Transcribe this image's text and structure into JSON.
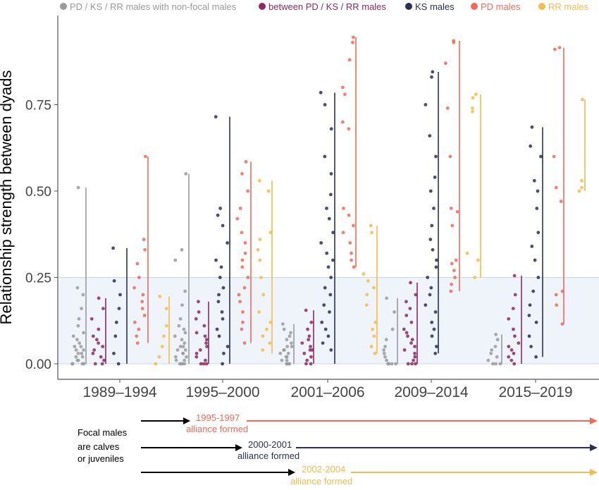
{
  "chart_data": {
    "type": "scatter",
    "title": "",
    "ylabel": "Relationship strength between dyads",
    "xlabel": "",
    "ylim": [
      0,
      0.95
    ],
    "yticks": [
      0,
      0.25,
      0.5,
      0.75
    ],
    "ytick_labels": [
      "0.00",
      "0.25",
      "0.50",
      "0.75"
    ],
    "categories": [
      "1989–1994",
      "1995–2000",
      "2001–2006",
      "2009–2014",
      "2015–2019"
    ],
    "legend": {
      "placement": "top"
    },
    "shaded_band": {
      "from": 0,
      "to": 0.25,
      "color": "#eef4f9"
    },
    "grid": false,
    "series": [
      {
        "name": "PD / KS / RR males with non-focal males",
        "color": "#9a9a9a",
        "ranges": [
          [
            0,
            0.51
          ],
          [
            0,
            0.55
          ],
          [
            0,
            0.115
          ],
          [
            0,
            0.19
          ],
          [
            0,
            0.085
          ]
        ],
        "samples": [
          [
            0.51,
            0.22,
            0.2,
            0.16,
            0.13,
            0.11,
            0.09,
            0.08,
            0.07,
            0.06,
            0.05,
            0.05,
            0.04,
            0.04,
            0.03,
            0.03,
            0.02,
            0.02,
            0.01,
            0.01,
            0,
            0,
            0,
            0
          ],
          [
            0.55,
            0.33,
            0.3,
            0.21,
            0.17,
            0.13,
            0.11,
            0.1,
            0.09,
            0.08,
            0.07,
            0.06,
            0.05,
            0.05,
            0.04,
            0.04,
            0.03,
            0.03,
            0.02,
            0.02,
            0.01,
            0.01,
            0,
            0,
            0,
            0
          ],
          [
            0.115,
            0.1,
            0.09,
            0.08,
            0.07,
            0.06,
            0.05,
            0.05,
            0.04,
            0.04,
            0.03,
            0.03,
            0.02,
            0.02,
            0.01,
            0.01,
            0,
            0,
            0,
            0
          ],
          [
            0.19,
            0.15,
            0.1,
            0.07,
            0.05,
            0.04,
            0.03,
            0.02,
            0.01,
            0,
            0,
            0,
            0
          ],
          [
            0.085,
            0.07,
            0.05,
            0.04,
            0.03,
            0.02,
            0.01,
            0,
            0,
            0
          ]
        ]
      },
      {
        "name": "between PD / KS / RR males",
        "color": "#8b2a63",
        "ranges": [
          [
            0,
            0.19
          ],
          [
            0,
            0.18
          ],
          [
            0,
            0.155
          ],
          [
            0,
            0.235
          ],
          [
            0,
            0.255
          ]
        ],
        "samples": [
          [
            0.19,
            0.16,
            0.13,
            0.1,
            0.08,
            0.07,
            0.06,
            0.05,
            0.04,
            0.03,
            0.02,
            0.01,
            0,
            0
          ],
          [
            0.18,
            0.15,
            0.13,
            0.11,
            0.09,
            0.08,
            0.07,
            0.06,
            0.05,
            0.04,
            0.03,
            0.02,
            0.01,
            0,
            0,
            0
          ],
          [
            0.155,
            0.12,
            0.1,
            0.08,
            0.07,
            0.06,
            0.05,
            0.04,
            0.04,
            0.03,
            0.02,
            0.01,
            0,
            0
          ],
          [
            0.235,
            0.2,
            0.18,
            0.16,
            0.14,
            0.12,
            0.1,
            0.09,
            0.08,
            0.07,
            0.06,
            0.05,
            0.04,
            0.03,
            0.02,
            0.01,
            0,
            0,
            0
          ],
          [
            0.255,
            0.2,
            0.16,
            0.13,
            0.1,
            0.08,
            0.06,
            0.05,
            0.04,
            0.03,
            0.02,
            0.01,
            0
          ]
        ]
      },
      {
        "name": "KS males",
        "color": "#2b2f55",
        "ranges": [
          [
            0,
            0.335
          ],
          [
            0,
            0.715
          ],
          [
            0,
            0.785
          ],
          [
            0.03,
            0.845
          ],
          [
            0.02,
            0.685
          ]
        ],
        "samples": [
          [
            0.335,
            0.24,
            0.2,
            0.16,
            0.12,
            0.08,
            0.03,
            0
          ],
          [
            0.715,
            0.45,
            0.43,
            0.4,
            0.35,
            0.3,
            0.28,
            0.25,
            0.22,
            0.2,
            0.18,
            0.15,
            0.13,
            0.1,
            0.08,
            0.05,
            0.03,
            0
          ],
          [
            0.785,
            0.75,
            0.68,
            0.6,
            0.55,
            0.49,
            0.45,
            0.42,
            0.38,
            0.35,
            0.32,
            0.3,
            0.28,
            0.25,
            0.22,
            0.2,
            0.17,
            0.15,
            0.12,
            0.1,
            0.08,
            0.06,
            0.04
          ],
          [
            0.845,
            0.83,
            0.75,
            0.66,
            0.6,
            0.54,
            0.5,
            0.45,
            0.4,
            0.36,
            0.33,
            0.3,
            0.28,
            0.25,
            0.22,
            0.2,
            0.17,
            0.15,
            0.12,
            0.1,
            0.08,
            0.05,
            0.03
          ],
          [
            0.685,
            0.63,
            0.6,
            0.53,
            0.5,
            0.45,
            0.38,
            0.34,
            0.3,
            0.25,
            0.21,
            0.17,
            0.14,
            0.12,
            0.08,
            0.05,
            0.02
          ]
        ]
      },
      {
        "name": "PD males",
        "color": "#f06a5a",
        "ranges": [
          [
            0.06,
            0.6
          ],
          [
            0.06,
            0.585
          ],
          [
            0.28,
            0.945
          ],
          [
            0.21,
            0.935
          ],
          [
            0.115,
            0.915
          ]
        ],
        "samples": [
          [
            0.6,
            0.36,
            0.33,
            0.29,
            0.25,
            0.22,
            0.2,
            0.18,
            0.16,
            0.14,
            0.12,
            0.1,
            0.08,
            0.06
          ],
          [
            0.585,
            0.55,
            0.5,
            0.45,
            0.42,
            0.38,
            0.35,
            0.32,
            0.3,
            0.28,
            0.25,
            0.22,
            0.2,
            0.18,
            0.15,
            0.12,
            0.1,
            0.06
          ],
          [
            0.945,
            0.93,
            0.88,
            0.8,
            0.78,
            0.7,
            0.68,
            0.45,
            0.43,
            0.4,
            0.38,
            0.35,
            0.32,
            0.3,
            0.28
          ],
          [
            0.935,
            0.93,
            0.87,
            0.74,
            0.6,
            0.45,
            0.44,
            0.4,
            0.3,
            0.29,
            0.27,
            0.25,
            0.23,
            0.21
          ],
          [
            0.915,
            0.91,
            0.6,
            0.51,
            0.47,
            0.21,
            0.2,
            0.17,
            0.115
          ]
        ]
      },
      {
        "name": "RR males",
        "color": "#f6bb4a",
        "ranges": [
          [
            0,
            0.195
          ],
          [
            0.03,
            0.53
          ],
          [
            0.03,
            0.4
          ],
          [
            0.25,
            0.78
          ],
          [
            0.5,
            0.765
          ]
        ],
        "samples": [
          [
            0.195,
            0.16,
            0.11,
            0.08,
            0.05,
            0.02,
            0
          ],
          [
            0.53,
            0.5,
            0.38,
            0.36,
            0.33,
            0.3,
            0.25,
            0.2,
            0.15,
            0.12,
            0.1,
            0.08,
            0.06,
            0.04
          ],
          [
            0.4,
            0.38,
            0.26,
            0.24,
            0.22,
            0.2,
            0.17,
            0.12,
            0.1,
            0.08,
            0.05,
            0.03
          ],
          [
            0.78,
            0.77,
            0.74,
            0.73,
            0.32,
            0.3,
            0.25
          ],
          [
            0.765,
            0.53,
            0.51,
            0.5
          ]
        ]
      }
    ]
  },
  "timeline": {
    "caption_lines": [
      "Focal males",
      "are calves",
      "or juveniles"
    ],
    "arrows": [
      {
        "years": "1995-1997",
        "label": "alliance formed",
        "color": "#f06a5a"
      },
      {
        "years": "2000-2001",
        "label": "alliance formed",
        "color": "#2b2f55"
      },
      {
        "years": "2002-2004",
        "label": "alliance formed",
        "color": "#f6bb4a"
      }
    ]
  }
}
